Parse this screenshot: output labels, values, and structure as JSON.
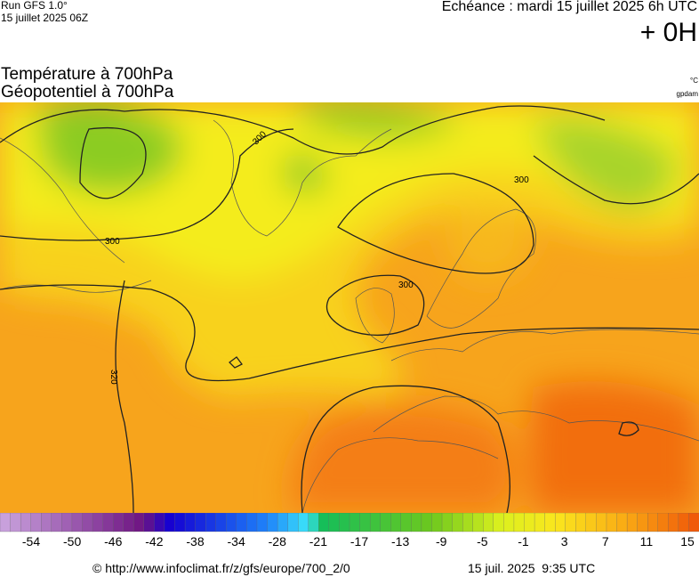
{
  "header": {
    "run": "Run GFS 1.0°",
    "date": "15 juillet 2025 06Z",
    "forecast": "Echéance : mardi 15 juillet 2025 6h UTC",
    "lead": "+ 0H"
  },
  "titles": [
    "Température à 700hPa",
    "Géopotentiel à 700hPa"
  ],
  "units": [
    "°C",
    "gpdam"
  ],
  "contour_labels": [
    "300",
    "300",
    "300",
    "300",
    "320"
  ],
  "legend": {
    "ticks": [
      -54,
      -50,
      -46,
      -42,
      -38,
      -34,
      -28,
      -21,
      -17,
      -13,
      -9,
      -5,
      -1,
      3,
      7,
      11,
      15
    ]
  },
  "footer": {
    "source": "© http://www.infoclimat.fr/z/gfs/europe/700_2/0",
    "timestamp": "15 juil. 2025  9:35 UTC"
  }
}
